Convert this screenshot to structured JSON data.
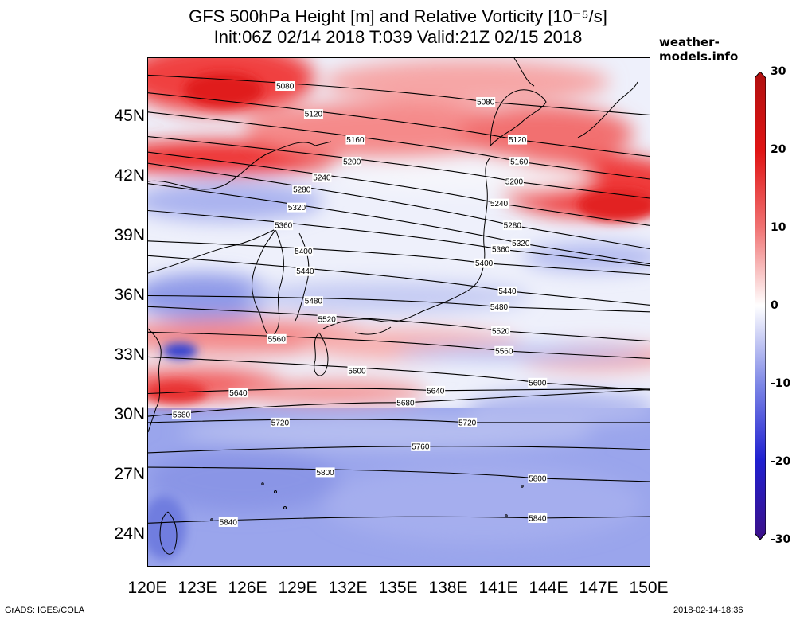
{
  "title": {
    "line1": "GFS 500hPa Height [m] and Relative Vorticity [10⁻⁵/s]",
    "line2": "Init:06Z 02/14 2018 T:039 Valid:21Z 02/15 2018"
  },
  "site": "weather-models.info",
  "footer": {
    "left": "GrADS: IGES/COLA",
    "right": "2018-02-14-18:36"
  },
  "axes": {
    "y_labels": [
      "45N",
      "42N",
      "39N",
      "36N",
      "33N",
      "30N",
      "27N",
      "24N"
    ],
    "x_labels": [
      "120E",
      "123E",
      "126E",
      "129E",
      "132E",
      "135E",
      "138E",
      "141E",
      "144E",
      "147E",
      "150E"
    ],
    "lon_range": [
      120,
      150
    ],
    "lat_range": [
      22.5,
      48
    ]
  },
  "colorbar": {
    "labels": [
      "30",
      "20",
      "10",
      "0",
      "-10",
      "-20",
      "-30"
    ],
    "colors": [
      "#b01010",
      "#e01414",
      "#f07070",
      "#ffffff",
      "#7c86e6",
      "#2020d0",
      "#3c1088"
    ]
  },
  "contours": [
    {
      "value": "5080",
      "labels": [
        {
          "lon": 128.2,
          "lat": 46.6
        },
        {
          "lon": 140.2,
          "lat": 45.8
        }
      ]
    },
    {
      "value": "5120",
      "labels": [
        {
          "lon": 129.9,
          "lat": 45.2
        },
        {
          "lon": 142.1,
          "lat": 43.9
        }
      ]
    },
    {
      "value": "5160",
      "labels": [
        {
          "lon": 132.4,
          "lat": 43.9
        },
        {
          "lon": 142.2,
          "lat": 42.8
        }
      ]
    },
    {
      "value": "5200",
      "labels": [
        {
          "lon": 132.2,
          "lat": 42.8
        },
        {
          "lon": 141.9,
          "lat": 41.8
        }
      ]
    },
    {
      "value": "5240",
      "labels": [
        {
          "lon": 130.4,
          "lat": 42.0
        },
        {
          "lon": 141.0,
          "lat": 40.7
        }
      ]
    },
    {
      "value": "5280",
      "labels": [
        {
          "lon": 129.2,
          "lat": 41.4
        },
        {
          "lon": 141.8,
          "lat": 39.6
        }
      ]
    },
    {
      "value": "5320",
      "labels": [
        {
          "lon": 128.9,
          "lat": 40.5
        },
        {
          "lon": 142.3,
          "lat": 38.7
        }
      ]
    },
    {
      "value": "5360",
      "labels": [
        {
          "lon": 128.1,
          "lat": 39.6
        },
        {
          "lon": 141.1,
          "lat": 38.4
        }
      ]
    },
    {
      "value": "5400",
      "labels": [
        {
          "lon": 129.3,
          "lat": 38.3
        },
        {
          "lon": 140.1,
          "lat": 37.7
        }
      ]
    },
    {
      "value": "5440",
      "labels": [
        {
          "lon": 129.4,
          "lat": 37.3
        },
        {
          "lon": 141.5,
          "lat": 36.3
        }
      ]
    },
    {
      "value": "5480",
      "labels": [
        {
          "lon": 129.9,
          "lat": 35.8
        },
        {
          "lon": 141.0,
          "lat": 35.5
        }
      ]
    },
    {
      "value": "5520",
      "labels": [
        {
          "lon": 130.7,
          "lat": 34.9
        },
        {
          "lon": 141.1,
          "lat": 34.3
        }
      ]
    },
    {
      "value": "5560",
      "labels": [
        {
          "lon": 127.7,
          "lat": 33.9
        },
        {
          "lon": 141.3,
          "lat": 33.3
        }
      ]
    },
    {
      "value": "5600",
      "labels": [
        {
          "lon": 132.5,
          "lat": 32.3
        },
        {
          "lon": 143.3,
          "lat": 31.7
        }
      ]
    },
    {
      "value": "5640",
      "labels": [
        {
          "lon": 125.4,
          "lat": 31.2
        },
        {
          "lon": 137.2,
          "lat": 31.3
        }
      ]
    },
    {
      "value": "5680",
      "labels": [
        {
          "lon": 122.0,
          "lat": 30.1
        },
        {
          "lon": 135.4,
          "lat": 30.7
        }
      ]
    },
    {
      "value": "5720",
      "labels": [
        {
          "lon": 127.9,
          "lat": 29.7
        },
        {
          "lon": 139.1,
          "lat": 29.7
        }
      ]
    },
    {
      "value": "5760",
      "labels": [
        {
          "lon": 136.3,
          "lat": 28.5
        }
      ]
    },
    {
      "value": "5800",
      "labels": [
        {
          "lon": 130.6,
          "lat": 27.2
        },
        {
          "lon": 143.3,
          "lat": 26.9
        }
      ]
    },
    {
      "value": "5840",
      "labels": [
        {
          "lon": 124.8,
          "lat": 24.7
        },
        {
          "lon": 143.3,
          "lat": 24.9
        }
      ]
    }
  ]
}
